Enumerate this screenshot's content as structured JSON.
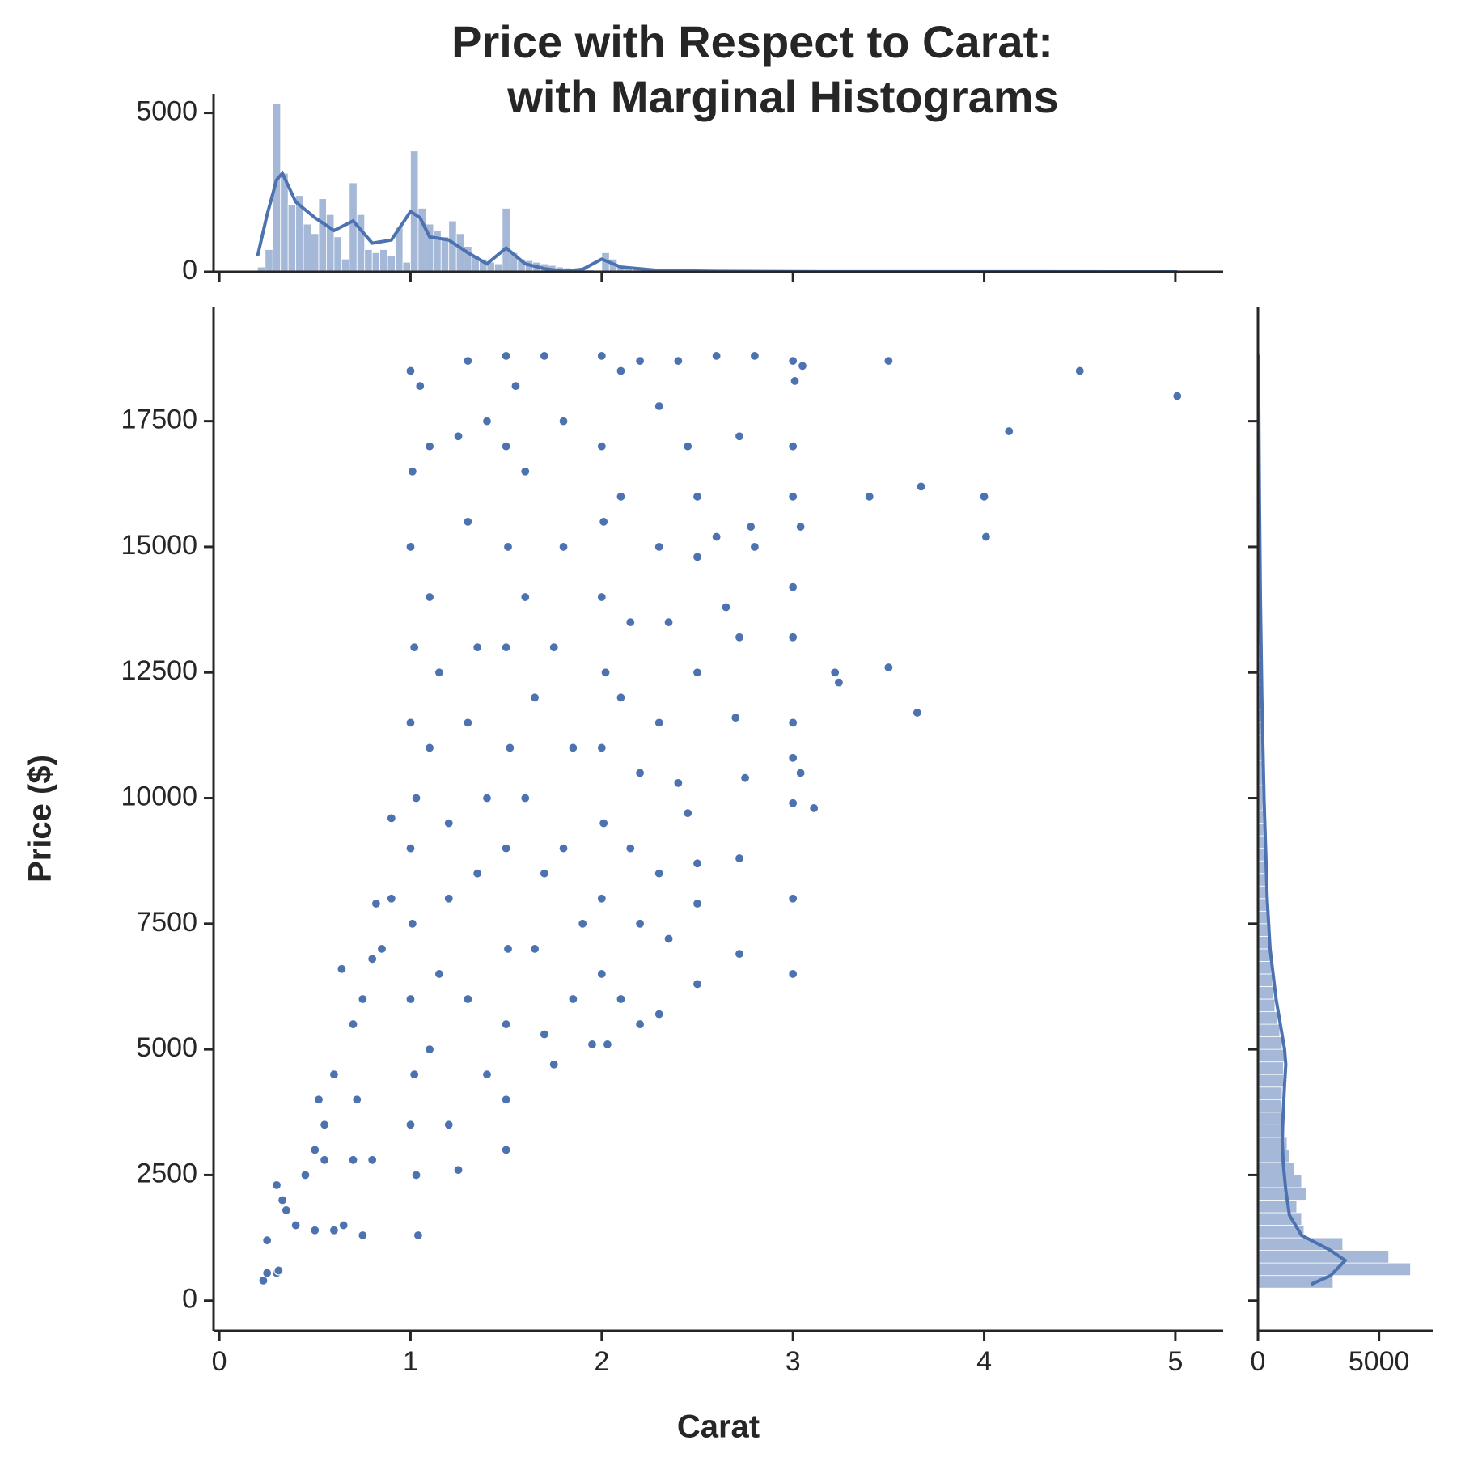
{
  "chart_data": [
    {
      "type": "scatter",
      "title": [
        "Price with Respect to Carat:",
        "with Marginal Histograms"
      ],
      "xlabel": "Carat",
      "ylabel": "Price ($)",
      "color": "#4c72b0",
      "xlim": [
        -0.03,
        5.25
      ],
      "ylim": [
        -600,
        19780
      ],
      "xticks": [
        0,
        1,
        2,
        3,
        4,
        5
      ],
      "yticks": [
        0,
        2500,
        5000,
        7500,
        10000,
        12500,
        15000,
        17500
      ],
      "x": [
        0.23,
        0.25,
        0.3,
        0.31,
        0.25,
        0.3,
        0.33,
        0.35,
        0.4,
        0.45,
        0.5,
        0.52,
        0.55,
        0.6,
        0.64,
        0.7,
        0.72,
        0.75,
        0.8,
        0.82,
        0.85,
        0.9,
        0.9,
        0.5,
        0.6,
        0.7,
        0.8,
        0.55,
        0.65,
        0.75,
        1.0,
        1.01,
        1.0,
        1.02,
        1.0,
        1.03,
        1.0,
        1.01,
        1.0,
        1.02,
        1.0,
        1.03,
        1.04,
        1.05,
        1.1,
        1.1,
        1.15,
        1.1,
        1.2,
        1.2,
        1.15,
        1.1,
        1.2,
        1.25,
        1.3,
        1.35,
        1.3,
        1.4,
        1.35,
        1.3,
        1.4,
        1.3,
        1.4,
        1.25,
        1.5,
        1.5,
        1.51,
        1.5,
        1.52,
        1.5,
        1.51,
        1.5,
        1.5,
        1.5,
        1.55,
        1.6,
        1.6,
        1.65,
        1.6,
        1.7,
        1.65,
        1.7,
        1.75,
        1.7,
        1.8,
        1.8,
        1.75,
        1.85,
        1.8,
        1.9,
        1.85,
        1.95,
        2.0,
        2.0,
        2.01,
        2.0,
        2.02,
        2.0,
        2.01,
        2.0,
        2.0,
        2.03,
        2.1,
        2.1,
        2.15,
        2.1,
        2.2,
        2.15,
        2.2,
        2.1,
        2.2,
        2.2,
        2.3,
        2.3,
        2.35,
        2.3,
        2.4,
        2.3,
        2.35,
        2.3,
        2.4,
        2.45,
        2.5,
        2.5,
        2.5,
        2.45,
        2.5,
        2.5,
        2.5,
        2.6,
        2.6,
        2.65,
        2.7,
        2.72,
        2.72,
        2.75,
        2.72,
        2.72,
        2.8,
        2.8,
        2.78,
        3.0,
        3.0,
        3.0,
        3.0,
        3.0,
        3.0,
        3.0,
        3.0,
        3.0,
        3.0,
        3.01,
        3.05,
        3.04,
        3.04,
        3.11,
        3.22,
        3.24,
        3.4,
        3.5,
        3.5,
        3.65,
        3.67,
        4.0,
        4.01,
        4.13,
        4.5,
        5.01
      ],
      "values": [
        400,
        550,
        550,
        600,
        1200,
        2300,
        2000,
        1800,
        1500,
        2500,
        3000,
        4000,
        3500,
        4500,
        6600,
        5500,
        4000,
        6000,
        6800,
        7900,
        7000,
        9600,
        8000,
        1400,
        1400,
        2800,
        2800,
        2800,
        1500,
        1300,
        18500,
        16500,
        15000,
        13000,
        11500,
        10000,
        9000,
        7500,
        6000,
        4500,
        3500,
        2500,
        1300,
        18200,
        17000,
        14000,
        12500,
        11000,
        9500,
        8000,
        6500,
        5000,
        3500,
        2600,
        15500,
        13000,
        11500,
        10000,
        8500,
        6000,
        4500,
        18700,
        17500,
        17200,
        18800,
        17000,
        15000,
        13000,
        11000,
        9000,
        7000,
        5500,
        4000,
        3000,
        18200,
        16500,
        14000,
        12000,
        10000,
        8500,
        7000,
        5300,
        4700,
        18800,
        17500,
        15000,
        13000,
        11000,
        9000,
        7500,
        6000,
        5100,
        18800,
        17000,
        15500,
        14000,
        12500,
        11000,
        9500,
        8000,
        6500,
        5100,
        18500,
        16000,
        13500,
        12000,
        10500,
        9000,
        7500,
        6000,
        5500,
        18700,
        17800,
        15000,
        13500,
        11500,
        10300,
        8500,
        7200,
        5700,
        18700,
        17000,
        16000,
        14800,
        12500,
        9700,
        8700,
        7900,
        6300,
        18800,
        15200,
        13800,
        11600,
        17200,
        13200,
        10400,
        8800,
        6900,
        18800,
        15000,
        15400,
        18700,
        17000,
        16000,
        14200,
        13200,
        11500,
        10800,
        9900,
        8000,
        6500,
        18300,
        18600,
        10500,
        15400,
        9800,
        12500,
        12300,
        16000,
        18700,
        12600,
        11700,
        16200,
        16000,
        15200,
        17300,
        18500,
        18000
      ]
    },
    {
      "type": "histogram",
      "orientation": "vertical",
      "color": "#4c72b0",
      "alpha": 0.5,
      "ylim": [
        0,
        5600
      ],
      "yticks": [
        0,
        5000
      ],
      "bins": [
        0.2,
        0.24,
        0.28,
        0.32,
        0.36,
        0.4,
        0.44,
        0.48,
        0.52,
        0.56,
        0.6,
        0.64,
        0.68,
        0.72,
        0.76,
        0.8,
        0.84,
        0.88,
        0.92,
        0.96,
        1.0,
        1.04,
        1.08,
        1.12,
        1.16,
        1.2,
        1.24,
        1.28,
        1.32,
        1.36,
        1.4,
        1.44,
        1.48,
        1.52,
        1.56,
        1.6,
        1.64,
        1.68,
        1.72,
        1.76,
        1.8,
        1.84,
        1.88,
        1.92,
        1.96,
        2.0,
        2.04,
        2.08,
        2.12,
        2.16,
        2.2,
        2.24,
        2.28,
        2.32,
        2.36,
        2.4,
        2.44,
        2.48,
        2.52,
        2.56,
        2.6,
        5.02
      ],
      "values": [
        150,
        700,
        5300,
        3100,
        2100,
        2400,
        1500,
        1200,
        2300,
        1800,
        1100,
        400,
        2800,
        1800,
        700,
        600,
        700,
        500,
        1400,
        300,
        3800,
        2000,
        1500,
        1300,
        1100,
        1600,
        1200,
        800,
        500,
        400,
        300,
        250,
        2000,
        600,
        400,
        350,
        300,
        250,
        200,
        150,
        120,
        100,
        80,
        60,
        50,
        600,
        400,
        200,
        150,
        100,
        80,
        60,
        50,
        40,
        30,
        25,
        20,
        20,
        20,
        15,
        8
      ],
      "kde_x": [
        0.2,
        0.25,
        0.3,
        0.33,
        0.4,
        0.5,
        0.6,
        0.7,
        0.8,
        0.9,
        1.0,
        1.05,
        1.1,
        1.2,
        1.3,
        1.4,
        1.5,
        1.6,
        1.7,
        1.8,
        1.9,
        2.0,
        2.1,
        2.3,
        2.6,
        3,
        4,
        5.01
      ],
      "kde_values": [
        500,
        1800,
        2900,
        3100,
        2200,
        1700,
        1300,
        1600,
        900,
        1000,
        1900,
        1700,
        1100,
        1000,
        600,
        250,
        750,
        250,
        100,
        20,
        80,
        400,
        150,
        40,
        15,
        5,
        2,
        0
      ]
    },
    {
      "type": "histogram",
      "orientation": "horizontal",
      "color": "#4c72b0",
      "alpha": 0.5,
      "xlim": [
        0,
        7250
      ],
      "xticks": [
        0,
        5000
      ],
      "bins": [
        250,
        500,
        750,
        1000,
        1250,
        1500,
        1750,
        2000,
        2250,
        2500,
        2750,
        3000,
        3250,
        3500,
        3750,
        4000,
        4250,
        4500,
        4750,
        5000,
        5250,
        5500,
        5750,
        6000,
        6250,
        6500,
        6750,
        7000,
        7250,
        7500,
        7750,
        8000,
        8250,
        8500,
        8750,
        9000,
        9250,
        9500,
        9750,
        10000,
        10250,
        10500,
        10750,
        11000,
        11250,
        11500,
        11750,
        12000,
        12250,
        12500,
        12750,
        13000,
        13250,
        13500,
        13750,
        14000,
        14250,
        14500,
        14750,
        15000,
        15250,
        15500,
        15750,
        16000,
        16250,
        16500,
        16750,
        17000,
        17250,
        17500,
        17750,
        18000,
        18250,
        18500,
        18750,
        19000
      ],
      "values": [
        3100,
        6300,
        5400,
        3500,
        1900,
        1800,
        1600,
        2000,
        1800,
        1500,
        1300,
        1200,
        1100,
        1000,
        950,
        1000,
        1050,
        1050,
        1100,
        1000,
        900,
        800,
        700,
        650,
        600,
        550,
        500,
        450,
        420,
        400,
        370,
        340,
        320,
        300,
        280,
        260,
        240,
        220,
        200,
        190,
        180,
        170,
        160,
        150,
        140,
        130,
        125,
        120,
        110,
        105,
        100,
        95,
        90,
        85,
        80,
        75,
        70,
        65,
        60,
        58,
        55,
        52,
        50,
        48,
        45,
        42,
        40,
        38,
        36,
        34,
        32,
        30,
        28,
        25,
        15
      ],
      "kde_y": [
        326,
        500,
        800,
        1000,
        1300,
        1700,
        2200,
        2700,
        3200,
        3800,
        4300,
        4700,
        5000,
        6000,
        7000,
        8000,
        10000,
        12000,
        14000,
        16000,
        18823
      ],
      "kde_values": [
        2200,
        3000,
        3600,
        3000,
        1800,
        1300,
        1150,
        1050,
        1000,
        1050,
        1100,
        1150,
        1100,
        750,
        500,
        380,
        250,
        160,
        100,
        60,
        20
      ]
    }
  ]
}
